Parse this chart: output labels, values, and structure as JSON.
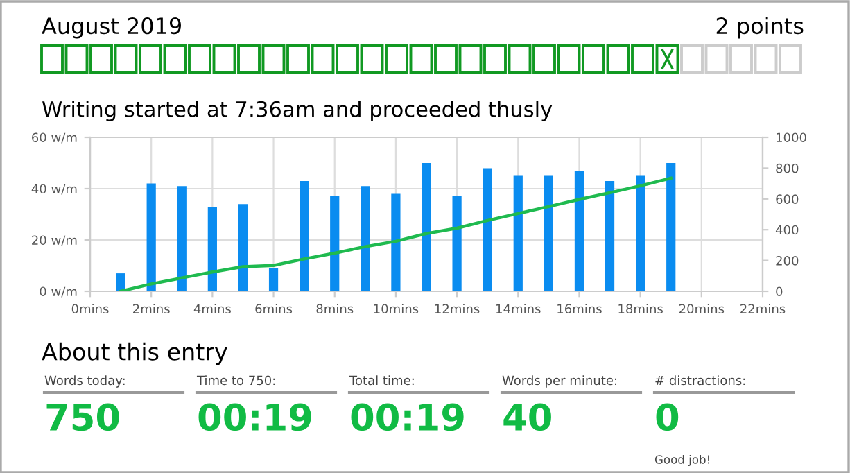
{
  "chart_data": [
    {
      "type": "other",
      "title": "August 2019",
      "annotations": [
        "2 points"
      ]
    },
    {
      "type": "bar",
      "title": "Writing started at 7:36am and proceeded thusly",
      "x": [
        1,
        2,
        3,
        4,
        5,
        6,
        7,
        8,
        9,
        10,
        11,
        12,
        13,
        14,
        15,
        16,
        17,
        18,
        19
      ],
      "series": [
        {
          "type": "bar",
          "color": "#0a8cf0",
          "values": [
            7,
            42,
            41,
            33,
            34,
            9,
            43,
            37,
            41,
            38,
            50,
            37,
            48,
            45,
            45,
            47,
            43,
            45,
            50
          ]
        },
        {
          "type": "line",
          "axis": "y2",
          "color": "#1fba4f",
          "values": [
            0,
            48,
            87,
            125,
            160,
            168,
            210,
            248,
            290,
            325,
            375,
            410,
            460,
            505,
            550,
            597,
            640,
            685,
            735
          ]
        }
      ],
      "xlim": [
        0,
        22
      ],
      "xticks": [
        {
          "value": 0,
          "label": "0mins"
        },
        {
          "value": 2,
          "label": "2mins"
        },
        {
          "value": 4,
          "label": "4mins"
        },
        {
          "value": 6,
          "label": "6mins"
        },
        {
          "value": 8,
          "label": "8mins"
        },
        {
          "value": 10,
          "label": "10mins"
        },
        {
          "value": 12,
          "label": "12mins"
        },
        {
          "value": 14,
          "label": "14mins"
        },
        {
          "value": 16,
          "label": "16mins"
        },
        {
          "value": 18,
          "label": "18mins"
        },
        {
          "value": 20,
          "label": "20mins"
        },
        {
          "value": 22,
          "label": "22mins"
        }
      ],
      "ylim": [
        0,
        60
      ],
      "yticks": [
        {
          "value": 0,
          "label": "0 w/m"
        },
        {
          "value": 20,
          "label": "20 w/m"
        },
        {
          "value": 40,
          "label": "40 w/m"
        },
        {
          "value": 60,
          "label": "60 w/m"
        }
      ],
      "y2lim": [
        0,
        1000
      ],
      "y2ticks": [
        0,
        200,
        400,
        600,
        800,
        1000
      ],
      "grid": true,
      "legend": false,
      "marker": "none",
      "line_style": "solid"
    },
    {
      "type": "other",
      "title": "About this entry",
      "annotations": [
        "Words today:",
        "Time to 750:",
        "Total time:",
        "Words per minute:",
        "# distractions:",
        "750",
        "00:19",
        "00:19",
        "40",
        "0",
        "Good job!"
      ]
    }
  ]
}
